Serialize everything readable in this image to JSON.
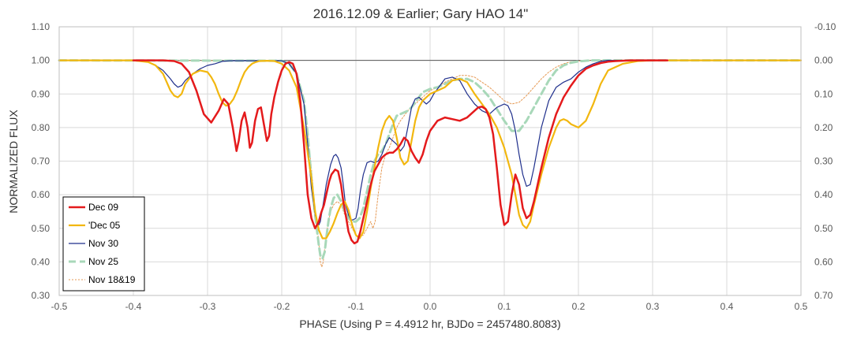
{
  "chart_data": {
    "type": "line",
    "title": "2016.12.09 & Earlier; Gary HAO 14\"",
    "xlabel": "PHASE (Using P = 4.4912 hr, BJDo = 2457480.8083)",
    "ylabel": "NORMALIZED FLUX",
    "xlim": [
      -0.5,
      0.5
    ],
    "ylim": [
      0.3,
      1.1
    ],
    "y2lim": [
      0.7,
      -0.1
    ],
    "x_ticks": [
      "-0.5",
      "-0.4",
      "-0.3",
      "-0.2",
      "-0.1",
      "0.0",
      "0.1",
      "0.2",
      "0.3",
      "0.4",
      "0.5"
    ],
    "y_ticks": [
      "0.30",
      "0.40",
      "0.50",
      "0.60",
      "0.70",
      "0.80",
      "0.90",
      "1.00",
      "1.10"
    ],
    "y2_ticks": [
      "0.70",
      "0.60",
      "0.50",
      "0.40",
      "0.30",
      "0.20",
      "0.10",
      "0.00",
      "-0.10"
    ],
    "grid": true,
    "reference_line_y": 1.0,
    "legend_position": "bottom-left",
    "series": [
      {
        "name": "Dec 09",
        "color": "#e41a1c",
        "width": 2.5,
        "dash": "",
        "x": [
          -0.4,
          -0.36,
          -0.345,
          -0.335,
          -0.325,
          -0.315,
          -0.305,
          -0.295,
          -0.285,
          -0.278,
          -0.272,
          -0.266,
          -0.261,
          -0.258,
          -0.254,
          -0.25,
          -0.246,
          -0.243,
          -0.24,
          -0.236,
          -0.232,
          -0.228,
          -0.224,
          -0.22,
          -0.217,
          -0.214,
          -0.21,
          -0.205,
          -0.2,
          -0.195,
          -0.19,
          -0.185,
          -0.18,
          -0.175,
          -0.17,
          -0.165,
          -0.16,
          -0.155,
          -0.15,
          -0.147,
          -0.143,
          -0.14,
          -0.136,
          -0.133,
          -0.128,
          -0.124,
          -0.12,
          -0.117,
          -0.113,
          -0.11,
          -0.106,
          -0.102,
          -0.098,
          -0.094,
          -0.09,
          -0.085,
          -0.08,
          -0.075,
          -0.07,
          -0.065,
          -0.06,
          -0.055,
          -0.05,
          -0.045,
          -0.04,
          -0.035,
          -0.03,
          -0.025,
          -0.02,
          -0.015,
          -0.01,
          -0.005,
          0.0,
          0.01,
          0.02,
          0.03,
          0.04,
          0.05,
          0.06,
          0.065,
          0.07,
          0.075,
          0.08,
          0.085,
          0.09,
          0.095,
          0.1,
          0.105,
          0.11,
          0.115,
          0.12,
          0.125,
          0.13,
          0.135,
          0.14,
          0.15,
          0.16,
          0.17,
          0.18,
          0.19,
          0.2,
          0.21,
          0.22,
          0.23,
          0.24,
          0.25,
          0.27,
          0.3,
          0.32
        ],
        "y": [
          1.0,
          1.0,
          0.998,
          0.99,
          0.965,
          0.91,
          0.84,
          0.815,
          0.85,
          0.885,
          0.87,
          0.8,
          0.73,
          0.76,
          0.82,
          0.845,
          0.8,
          0.74,
          0.755,
          0.82,
          0.855,
          0.86,
          0.81,
          0.76,
          0.775,
          0.84,
          0.89,
          0.935,
          0.97,
          0.99,
          0.995,
          0.99,
          0.96,
          0.88,
          0.75,
          0.6,
          0.53,
          0.5,
          0.52,
          0.545,
          0.57,
          0.6,
          0.64,
          0.66,
          0.675,
          0.67,
          0.63,
          0.58,
          0.53,
          0.49,
          0.465,
          0.455,
          0.46,
          0.49,
          0.53,
          0.58,
          0.63,
          0.67,
          0.69,
          0.71,
          0.72,
          0.725,
          0.725,
          0.735,
          0.75,
          0.77,
          0.76,
          0.73,
          0.71,
          0.695,
          0.72,
          0.76,
          0.79,
          0.82,
          0.83,
          0.825,
          0.82,
          0.83,
          0.85,
          0.86,
          0.862,
          0.855,
          0.83,
          0.78,
          0.68,
          0.57,
          0.51,
          0.52,
          0.6,
          0.66,
          0.63,
          0.56,
          0.53,
          0.54,
          0.58,
          0.68,
          0.77,
          0.84,
          0.89,
          0.925,
          0.955,
          0.975,
          0.985,
          0.992,
          0.996,
          0.998,
          1.0,
          1.0,
          1.0
        ]
      },
      {
        "name": "'Dec 05",
        "color": "#f2b70f",
        "width": 2.2,
        "dash": "",
        "x": [
          -0.5,
          -0.4,
          -0.38,
          -0.37,
          -0.36,
          -0.355,
          -0.35,
          -0.345,
          -0.34,
          -0.335,
          -0.33,
          -0.32,
          -0.31,
          -0.3,
          -0.295,
          -0.29,
          -0.285,
          -0.28,
          -0.275,
          -0.27,
          -0.265,
          -0.26,
          -0.255,
          -0.25,
          -0.245,
          -0.24,
          -0.235,
          -0.23,
          -0.22,
          -0.21,
          -0.2,
          -0.19,
          -0.18,
          -0.17,
          -0.16,
          -0.155,
          -0.15,
          -0.145,
          -0.14,
          -0.135,
          -0.13,
          -0.125,
          -0.12,
          -0.115,
          -0.11,
          -0.105,
          -0.1,
          -0.095,
          -0.09,
          -0.085,
          -0.08,
          -0.075,
          -0.07,
          -0.065,
          -0.06,
          -0.055,
          -0.05,
          -0.045,
          -0.04,
          -0.035,
          -0.03,
          -0.025,
          -0.02,
          -0.015,
          -0.01,
          -0.005,
          0.0,
          0.01,
          0.02,
          0.03,
          0.04,
          0.05,
          0.06,
          0.07,
          0.08,
          0.09,
          0.1,
          0.105,
          0.11,
          0.115,
          0.12,
          0.125,
          0.13,
          0.135,
          0.14,
          0.15,
          0.16,
          0.165,
          0.17,
          0.175,
          0.18,
          0.185,
          0.19,
          0.2,
          0.21,
          0.22,
          0.23,
          0.24,
          0.26,
          0.28,
          0.3,
          0.4,
          0.5
        ],
        "y": [
          1.0,
          1.0,
          0.995,
          0.985,
          0.96,
          0.935,
          0.91,
          0.895,
          0.89,
          0.9,
          0.93,
          0.96,
          0.97,
          0.965,
          0.95,
          0.93,
          0.9,
          0.875,
          0.865,
          0.87,
          0.885,
          0.91,
          0.94,
          0.965,
          0.98,
          0.99,
          0.995,
          0.998,
          0.999,
          0.998,
          0.99,
          0.97,
          0.92,
          0.8,
          0.65,
          0.55,
          0.495,
          0.47,
          0.47,
          0.49,
          0.515,
          0.545,
          0.57,
          0.58,
          0.555,
          0.51,
          0.48,
          0.47,
          0.49,
          0.55,
          0.62,
          0.68,
          0.74,
          0.79,
          0.82,
          0.835,
          0.82,
          0.77,
          0.71,
          0.69,
          0.7,
          0.76,
          0.82,
          0.86,
          0.88,
          0.89,
          0.9,
          0.91,
          0.92,
          0.94,
          0.945,
          0.935,
          0.9,
          0.87,
          0.84,
          0.8,
          0.74,
          0.7,
          0.66,
          0.6,
          0.54,
          0.51,
          0.5,
          0.52,
          0.57,
          0.66,
          0.74,
          0.77,
          0.8,
          0.82,
          0.825,
          0.82,
          0.81,
          0.8,
          0.82,
          0.87,
          0.93,
          0.97,
          0.99,
          0.998,
          1.0,
          1.0,
          1.0
        ]
      },
      {
        "name": "Nov 30",
        "color": "#1f2f8c",
        "width": 1.2,
        "dash": "",
        "x": [
          -0.5,
          -0.4,
          -0.38,
          -0.37,
          -0.36,
          -0.35,
          -0.345,
          -0.34,
          -0.335,
          -0.33,
          -0.32,
          -0.31,
          -0.3,
          -0.29,
          -0.28,
          -0.27,
          -0.2,
          -0.19,
          -0.18,
          -0.17,
          -0.165,
          -0.16,
          -0.155,
          -0.15,
          -0.148,
          -0.145,
          -0.142,
          -0.14,
          -0.137,
          -0.134,
          -0.13,
          -0.127,
          -0.124,
          -0.12,
          -0.117,
          -0.114,
          -0.11,
          -0.107,
          -0.104,
          -0.1,
          -0.097,
          -0.094,
          -0.09,
          -0.085,
          -0.08,
          -0.075,
          -0.07,
          -0.065,
          -0.06,
          -0.055,
          -0.05,
          -0.045,
          -0.04,
          -0.035,
          -0.03,
          -0.025,
          -0.02,
          -0.015,
          -0.01,
          -0.005,
          0.0,
          0.005,
          0.01,
          0.015,
          0.02,
          0.03,
          0.04,
          0.05,
          0.06,
          0.07,
          0.08,
          0.09,
          0.1,
          0.105,
          0.11,
          0.115,
          0.12,
          0.125,
          0.13,
          0.135,
          0.14,
          0.15,
          0.16,
          0.17,
          0.18,
          0.19,
          0.2,
          0.21,
          0.22,
          0.23,
          0.24,
          0.25,
          0.3,
          0.5
        ],
        "y": [
          1.0,
          1.0,
          0.995,
          0.985,
          0.97,
          0.945,
          0.93,
          0.92,
          0.925,
          0.94,
          0.96,
          0.975,
          0.985,
          0.99,
          0.997,
          0.999,
          0.999,
          0.99,
          0.96,
          0.87,
          0.75,
          0.62,
          0.54,
          0.51,
          0.52,
          0.56,
          0.6,
          0.63,
          0.66,
          0.69,
          0.715,
          0.72,
          0.71,
          0.68,
          0.63,
          0.57,
          0.54,
          0.525,
          0.525,
          0.53,
          0.56,
          0.61,
          0.66,
          0.695,
          0.7,
          0.695,
          0.7,
          0.72,
          0.75,
          0.77,
          0.76,
          0.75,
          0.73,
          0.745,
          0.8,
          0.86,
          0.885,
          0.89,
          0.88,
          0.87,
          0.88,
          0.9,
          0.915,
          0.93,
          0.945,
          0.95,
          0.94,
          0.9,
          0.87,
          0.85,
          0.84,
          0.86,
          0.87,
          0.865,
          0.84,
          0.79,
          0.72,
          0.66,
          0.625,
          0.63,
          0.68,
          0.8,
          0.88,
          0.92,
          0.935,
          0.945,
          0.965,
          0.98,
          0.99,
          0.997,
          1.0,
          1.0,
          1.0,
          1.0
        ]
      },
      {
        "name": "Nov 25",
        "color": "#a8d8b9",
        "width": 3,
        "dash": "9 5",
        "x": [
          -0.5,
          -0.2,
          -0.19,
          -0.18,
          -0.17,
          -0.165,
          -0.16,
          -0.155,
          -0.15,
          -0.148,
          -0.145,
          -0.142,
          -0.14,
          -0.137,
          -0.134,
          -0.13,
          -0.125,
          -0.12,
          -0.115,
          -0.11,
          -0.105,
          -0.1,
          -0.095,
          -0.09,
          -0.085,
          -0.08,
          -0.075,
          -0.07,
          -0.065,
          -0.06,
          -0.055,
          -0.05,
          -0.045,
          -0.04,
          -0.035,
          -0.03,
          -0.025,
          -0.02,
          -0.015,
          -0.01,
          -0.005,
          0.0,
          0.01,
          0.02,
          0.03,
          0.04,
          0.05,
          0.06,
          0.07,
          0.08,
          0.09,
          0.1,
          0.11,
          0.12,
          0.13,
          0.14,
          0.15,
          0.16,
          0.17,
          0.18,
          0.19,
          0.2,
          0.21,
          0.22,
          0.5
        ],
        "y": [
          1.0,
          0.999,
          0.99,
          0.96,
          0.88,
          0.78,
          0.65,
          0.54,
          0.45,
          0.42,
          0.41,
          0.43,
          0.47,
          0.52,
          0.56,
          0.59,
          0.6,
          0.58,
          0.55,
          0.53,
          0.52,
          0.52,
          0.53,
          0.56,
          0.61,
          0.66,
          0.7,
          0.72,
          0.73,
          0.75,
          0.78,
          0.81,
          0.835,
          0.84,
          0.845,
          0.85,
          0.86,
          0.875,
          0.89,
          0.905,
          0.91,
          0.915,
          0.92,
          0.93,
          0.94,
          0.945,
          0.945,
          0.935,
          0.915,
          0.89,
          0.855,
          0.82,
          0.79,
          0.79,
          0.82,
          0.86,
          0.9,
          0.94,
          0.97,
          0.985,
          0.993,
          0.997,
          0.999,
          1.0,
          1.0
        ]
      },
      {
        "name": "Nov 18&19",
        "color": "#e69a55",
        "width": 1,
        "dash": "2 2",
        "x": [
          -0.5,
          -0.2,
          -0.19,
          -0.18,
          -0.17,
          -0.16,
          -0.155,
          -0.15,
          -0.148,
          -0.146,
          -0.144,
          -0.142,
          -0.14,
          -0.137,
          -0.134,
          -0.13,
          -0.125,
          -0.12,
          -0.115,
          -0.11,
          -0.105,
          -0.1,
          -0.095,
          -0.09,
          -0.085,
          -0.08,
          -0.077,
          -0.074,
          -0.07,
          -0.065,
          -0.06,
          -0.055,
          -0.05,
          -0.045,
          -0.04,
          -0.035,
          -0.03,
          -0.025,
          -0.02,
          -0.01,
          0.0,
          0.01,
          0.02,
          0.03,
          0.04,
          0.05,
          0.06,
          0.07,
          0.08,
          0.09,
          0.1,
          0.11,
          0.12,
          0.13,
          0.14,
          0.15,
          0.16,
          0.17,
          0.18,
          0.19,
          0.2,
          0.21,
          0.22,
          0.5
        ],
        "y": [
          1.0,
          0.999,
          0.99,
          0.96,
          0.88,
          0.68,
          0.55,
          0.46,
          0.4,
          0.385,
          0.4,
          0.44,
          0.48,
          0.52,
          0.55,
          0.57,
          0.58,
          0.57,
          0.54,
          0.52,
          0.5,
          0.48,
          0.475,
          0.48,
          0.5,
          0.52,
          0.5,
          0.52,
          0.6,
          0.68,
          0.72,
          0.74,
          0.77,
          0.8,
          0.82,
          0.835,
          0.85,
          0.86,
          0.87,
          0.89,
          0.91,
          0.92,
          0.935,
          0.945,
          0.955,
          0.955,
          0.95,
          0.935,
          0.92,
          0.9,
          0.88,
          0.87,
          0.875,
          0.895,
          0.92,
          0.945,
          0.965,
          0.98,
          0.99,
          0.996,
          0.998,
          0.999,
          1.0,
          1.0
        ]
      }
    ]
  }
}
